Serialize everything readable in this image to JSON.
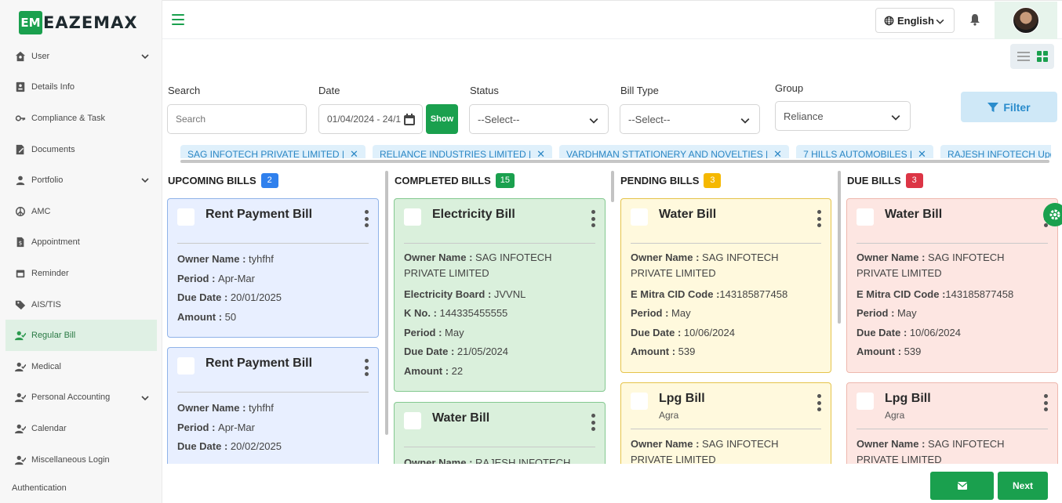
{
  "brand": {
    "mark": "EM",
    "name": "EAZEMAX"
  },
  "sidebar": {
    "items": [
      {
        "label": "User",
        "icon": "user-home-icon",
        "chevron": true
      },
      {
        "label": "Details Info",
        "icon": "id-card-icon",
        "chevron": false
      },
      {
        "label": "Compliance & Task",
        "icon": "key-icon",
        "chevron": false
      },
      {
        "label": "Documents",
        "icon": "document-edit-icon",
        "chevron": false
      },
      {
        "label": "Portfolio",
        "icon": "user-icon",
        "chevron": true
      },
      {
        "label": "AMC",
        "icon": "peace-icon",
        "chevron": false
      },
      {
        "label": "Appointment",
        "icon": "file-dollar-icon",
        "chevron": false
      },
      {
        "label": "Reminder",
        "icon": "calendar-icon",
        "chevron": false
      },
      {
        "label": "AIS/TIS",
        "icon": "tag-icon",
        "chevron": false
      },
      {
        "label": "Regular Bill",
        "icon": "user-check-icon",
        "chevron": false,
        "active": true
      },
      {
        "label": "Medical",
        "icon": "user-check-icon",
        "chevron": false
      },
      {
        "label": "Personal Accounting",
        "icon": "user-check-icon",
        "chevron": true
      },
      {
        "label": "Calendar",
        "icon": "user-check-icon",
        "chevron": false
      },
      {
        "label": "Miscellaneous Login",
        "icon": "user-check-icon",
        "chevron": false
      }
    ],
    "footer": "Authentication"
  },
  "header": {
    "language": "English"
  },
  "filters": {
    "search": {
      "label": "Search",
      "placeholder": "Search"
    },
    "date": {
      "label": "Date",
      "value": "01/04/2024 - 24/1"
    },
    "show_label": "Show",
    "status": {
      "label": "Status",
      "value": "--Select--"
    },
    "bill_type": {
      "label": "Bill Type",
      "value": "--Select--"
    },
    "group": {
      "label": "Group",
      "value": "Reliance"
    },
    "filter_label": "Filter"
  },
  "tags": [
    "SAG INFOTECH PRIVATE LIMITED |",
    "RELIANCE INDUSTRIES LIMITED |",
    "VARDHMAN STTATIONERY AND NOVELTIES |",
    "7 HILLS AUTOMOBILES |",
    "RAJESH INFOTECH Update |"
  ],
  "columns": [
    {
      "title": "UPCOMING BILLS",
      "count": "2",
      "badge_color": "#2f80ed",
      "cards": [
        {
          "title": "Rent Payment Bill",
          "sub": "",
          "fields": [
            {
              "k": "Owner Name",
              "v": "tyhfhf"
            },
            {
              "k": "Period",
              "v": "Apr-Mar"
            },
            {
              "k": "Due Date",
              "v": "20/01/2025"
            },
            {
              "k": "Amount",
              "v": "50"
            }
          ]
        },
        {
          "title": "Rent Payment Bill",
          "sub": "",
          "fields": [
            {
              "k": "Owner Name",
              "v": "tyhfhf"
            },
            {
              "k": "Period",
              "v": "Apr-Mar"
            },
            {
              "k": "Due Date",
              "v": "20/02/2025"
            }
          ]
        }
      ]
    },
    {
      "title": "COMPLETED BILLS",
      "count": "15",
      "badge_color": "#1aa04e",
      "cards": [
        {
          "title": "Electricity Bill",
          "sub": "",
          "fields": [
            {
              "k": "Owner Name",
              "v": "SAG INFOTECH PRIVATE LIMITED"
            },
            {
              "k": "Electricity Board",
              "v": "JVVNL"
            },
            {
              "k": "K No.",
              "v": "144335455555"
            },
            {
              "k": "Period",
              "v": "May"
            },
            {
              "k": "Due Date",
              "v": "21/05/2024"
            },
            {
              "k": "Amount",
              "v": "22"
            }
          ]
        },
        {
          "title": "Water Bill",
          "sub": "",
          "fields": [
            {
              "k": "Owner Name",
              "v": "RAJESH INFOTECH"
            }
          ]
        }
      ]
    },
    {
      "title": "PENDING BILLS",
      "count": "3",
      "badge_color": "#f5b800",
      "cards": [
        {
          "title": "Water Bill",
          "sub": "",
          "fields": [
            {
              "k": "Owner Name",
              "v": "SAG INFOTECH PRIVATE LIMITED"
            },
            {
              "k": "E Mitra CID Code",
              "v": "143185877458"
            },
            {
              "k": "Period",
              "v": "May"
            },
            {
              "k": "Due Date",
              "v": "10/06/2024"
            },
            {
              "k": "Amount",
              "v": "539"
            }
          ]
        },
        {
          "title": "Lpg Bill",
          "sub": "Agra",
          "fields": [
            {
              "k": "Owner Name",
              "v": "SAG INFOTECH PRIVATE LIMITED"
            }
          ]
        }
      ]
    },
    {
      "title": "DUE BILLS",
      "count": "3",
      "badge_color": "#dc3545",
      "cards": [
        {
          "title": "Water Bill",
          "sub": "",
          "fields": [
            {
              "k": "Owner Name",
              "v": "SAG INFOTECH PRIVATE LIMITED"
            },
            {
              "k": "E Mitra CID Code",
              "v": "143185877458"
            },
            {
              "k": "Period",
              "v": "May"
            },
            {
              "k": "Due Date",
              "v": "10/06/2024"
            },
            {
              "k": "Amount",
              "v": "539"
            }
          ]
        },
        {
          "title": "Lpg Bill",
          "sub": "Agra",
          "fields": [
            {
              "k": "Owner Name",
              "v": "SAG INFOTECH PRIVATE LIMITED"
            }
          ]
        }
      ]
    }
  ],
  "footer": {
    "next_label": "Next"
  }
}
